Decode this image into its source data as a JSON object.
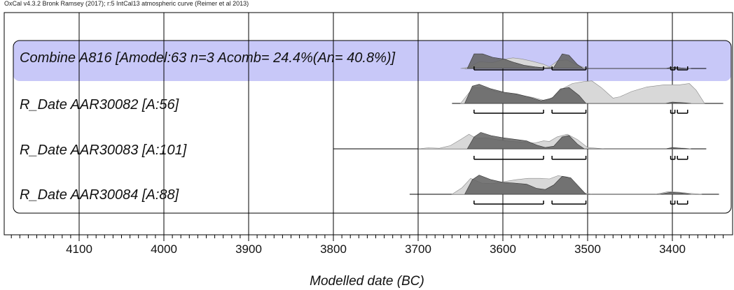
{
  "header": "OxCal v4.3.2 Bronk Ramsey (2017); r:5 IntCal13 atmospheric curve (Reimer et al 2013)",
  "chart_data": {
    "type": "area",
    "title": "",
    "xlabel": "Modelled date (BC)",
    "ylabel": "",
    "xlim": [
      4180,
      3340
    ],
    "x_ticks": [
      4100,
      4000,
      3900,
      3800,
      3700,
      3600,
      3500,
      3400
    ],
    "x_tick_labels": [
      "4100",
      "4000",
      "3900",
      "3800",
      "3700",
      "3600",
      "3500",
      "3400"
    ],
    "grid": true,
    "axis_direction": "reversed",
    "rows": [
      {
        "label": "Combine A816 [Amodel:63 n=3 Acomb= 24.4%(An= 40.8%)]",
        "highlight": true,
        "line_range": [
          3645,
          3360
        ],
        "prior": [
          [
            3650,
            0
          ],
          [
            3640,
            0.05
          ],
          [
            3628,
            0.25
          ],
          [
            3612,
            0.22
          ],
          [
            3598,
            0.35
          ],
          [
            3588,
            0.4
          ],
          [
            3578,
            0.36
          ],
          [
            3566,
            0.28
          ],
          [
            3552,
            0.16
          ],
          [
            3545,
            0.06
          ],
          [
            3535,
            0.3
          ],
          [
            3524,
            0.32
          ],
          [
            3512,
            0.12
          ],
          [
            3500,
            0.0
          ],
          [
            3408,
            0.0
          ],
          [
            3398,
            0.04
          ],
          [
            3388,
            0.01
          ],
          [
            3378,
            0
          ]
        ],
        "posterior": [
          [
            3642,
            0
          ],
          [
            3634,
            0.55
          ],
          [
            3624,
            0.55
          ],
          [
            3612,
            0.42
          ],
          [
            3598,
            0.35
          ],
          [
            3586,
            0.22
          ],
          [
            3575,
            0.12
          ],
          [
            3562,
            0.06
          ],
          [
            3550,
            0.02
          ],
          [
            3540,
            0.04
          ],
          [
            3530,
            0.55
          ],
          [
            3522,
            0.5
          ],
          [
            3512,
            0.15
          ],
          [
            3505,
            0.0
          ],
          [
            3408,
            0.0
          ],
          [
            3400,
            0.05
          ],
          [
            3390,
            0.02
          ],
          [
            3380,
            0
          ]
        ],
        "ranges": [
          [
            3634,
            3552
          ],
          [
            3542,
            3502
          ],
          [
            3402,
            3397
          ],
          [
            3394,
            3382
          ]
        ]
      },
      {
        "label": "R_Date AAR30082 [A:56]",
        "highlight": false,
        "line_range": [
          3660,
          3340
        ],
        "prior": [
          [
            3650,
            0
          ],
          [
            3635,
            0.6
          ],
          [
            3622,
            0.58
          ],
          [
            3608,
            0.45
          ],
          [
            3592,
            0.36
          ],
          [
            3578,
            0.3
          ],
          [
            3564,
            0.22
          ],
          [
            3550,
            0.1
          ],
          [
            3540,
            0.25
          ],
          [
            3530,
            0.55
          ],
          [
            3518,
            0.75
          ],
          [
            3505,
            0.82
          ],
          [
            3495,
            0.85
          ],
          [
            3484,
            0.6
          ],
          [
            3470,
            0.2
          ],
          [
            3462,
            0.25
          ],
          [
            3448,
            0.45
          ],
          [
            3430,
            0.62
          ],
          [
            3410,
            0.7
          ],
          [
            3392,
            0.7
          ],
          [
            3380,
            0.75
          ],
          [
            3372,
            0.5
          ],
          [
            3362,
            0
          ]
        ],
        "posterior": [
          [
            3645,
            0
          ],
          [
            3636,
            0.65
          ],
          [
            3628,
            0.72
          ],
          [
            3614,
            0.55
          ],
          [
            3598,
            0.42
          ],
          [
            3584,
            0.36
          ],
          [
            3570,
            0.25
          ],
          [
            3555,
            0.1
          ],
          [
            3542,
            0.2
          ],
          [
            3532,
            0.55
          ],
          [
            3522,
            0.6
          ],
          [
            3510,
            0.3
          ],
          [
            3502,
            0.0
          ],
          [
            3408,
            0
          ],
          [
            3400,
            0.05
          ],
          [
            3385,
            0.02
          ],
          [
            3378,
            0
          ]
        ],
        "ranges": [
          [
            3634,
            3552
          ],
          [
            3542,
            3502
          ],
          [
            3402,
            3397
          ],
          [
            3394,
            3382
          ]
        ]
      },
      {
        "label": "R_Date AAR30083 [A:101]",
        "highlight": false,
        "line_range": [
          3800,
          3360
        ],
        "prior": [
          [
            3700,
            0
          ],
          [
            3688,
            0.04
          ],
          [
            3675,
            0.02
          ],
          [
            3662,
            0.12
          ],
          [
            3650,
            0.35
          ],
          [
            3640,
            0.55
          ],
          [
            3632,
            0.4
          ],
          [
            3620,
            0.42
          ],
          [
            3606,
            0.34
          ],
          [
            3590,
            0.28
          ],
          [
            3576,
            0.25
          ],
          [
            3562,
            0.22
          ],
          [
            3552,
            0.3
          ],
          [
            3545,
            0.28
          ],
          [
            3536,
            0.45
          ],
          [
            3524,
            0.55
          ],
          [
            3512,
            0.35
          ],
          [
            3500,
            0.05
          ],
          [
            3480,
            0
          ],
          [
            3408,
            0
          ],
          [
            3398,
            0.04
          ],
          [
            3385,
            0.02
          ],
          [
            3378,
            0
          ]
        ],
        "posterior": [
          [
            3642,
            0
          ],
          [
            3634,
            0.45
          ],
          [
            3626,
            0.62
          ],
          [
            3614,
            0.5
          ],
          [
            3600,
            0.42
          ],
          [
            3586,
            0.36
          ],
          [
            3572,
            0.3
          ],
          [
            3560,
            0.14
          ],
          [
            3550,
            0.05
          ],
          [
            3540,
            0.1
          ],
          [
            3530,
            0.45
          ],
          [
            3522,
            0.5
          ],
          [
            3512,
            0.18
          ],
          [
            3504,
            0.0
          ],
          [
            3408,
            0
          ],
          [
            3400,
            0.05
          ],
          [
            3390,
            0.02
          ],
          [
            3380,
            0
          ]
        ],
        "ranges": [
          [
            3634,
            3552
          ],
          [
            3542,
            3502
          ],
          [
            3402,
            3397
          ],
          [
            3394,
            3382
          ]
        ]
      },
      {
        "label": "R_Date AAR30084 [A:88]",
        "highlight": false,
        "line_range": [
          3710,
          3345
        ],
        "prior": [
          [
            3660,
            0
          ],
          [
            3648,
            0.25
          ],
          [
            3638,
            0.6
          ],
          [
            3625,
            0.42
          ],
          [
            3612,
            0.4
          ],
          [
            3598,
            0.48
          ],
          [
            3584,
            0.55
          ],
          [
            3570,
            0.6
          ],
          [
            3556,
            0.6
          ],
          [
            3545,
            0.58
          ],
          [
            3535,
            0.7
          ],
          [
            3524,
            0.65
          ],
          [
            3514,
            0.35
          ],
          [
            3504,
            0.05
          ],
          [
            3495,
            0
          ],
          [
            3420,
            0
          ],
          [
            3405,
            0.1
          ],
          [
            3392,
            0.08
          ],
          [
            3380,
            0.04
          ],
          [
            3365,
            0
          ]
        ],
        "posterior": [
          [
            3645,
            0
          ],
          [
            3636,
            0.55
          ],
          [
            3628,
            0.72
          ],
          [
            3614,
            0.55
          ],
          [
            3600,
            0.45
          ],
          [
            3586,
            0.42
          ],
          [
            3572,
            0.38
          ],
          [
            3560,
            0.22
          ],
          [
            3550,
            0.18
          ],
          [
            3540,
            0.35
          ],
          [
            3530,
            0.68
          ],
          [
            3520,
            0.62
          ],
          [
            3510,
            0.28
          ],
          [
            3502,
            0.0
          ],
          [
            3415,
            0
          ],
          [
            3402,
            0.08
          ],
          [
            3390,
            0.05
          ],
          [
            3378,
            0
          ]
        ],
        "ranges": [
          [
            3634,
            3552
          ],
          [
            3542,
            3502
          ],
          [
            3402,
            3397
          ],
          [
            3394,
            3382
          ]
        ]
      }
    ],
    "colors": {
      "highlight_band": "#c8c8f8",
      "prior_fill": "#d8d8d8",
      "posterior_fill": "#606060",
      "frame": "#000000",
      "grid": "#000000"
    }
  }
}
